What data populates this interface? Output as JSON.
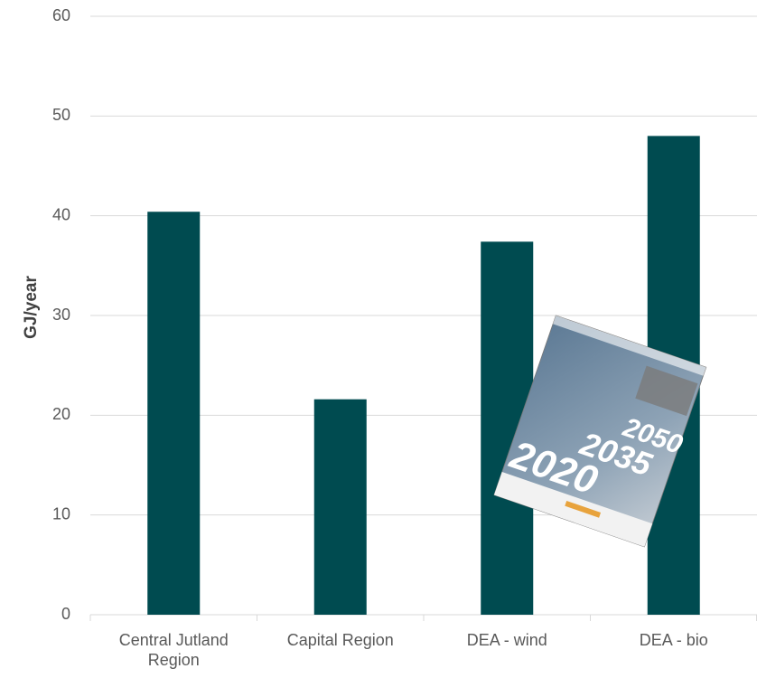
{
  "chart_data": {
    "type": "bar",
    "y_label": "GJ/year",
    "categories": [
      "Central Jutland Region",
      "Capital Region",
      "DEA - wind",
      "DEA - bio"
    ],
    "values": [
      40.4,
      21.6,
      37.4,
      48.0
    ],
    "color": "#004b50",
    "ylim": [
      0,
      60
    ],
    "yticks": [
      0,
      10,
      20,
      30,
      40,
      50,
      60
    ],
    "grid": true,
    "annotations": [
      "2050",
      "2035",
      "2020"
    ]
  }
}
